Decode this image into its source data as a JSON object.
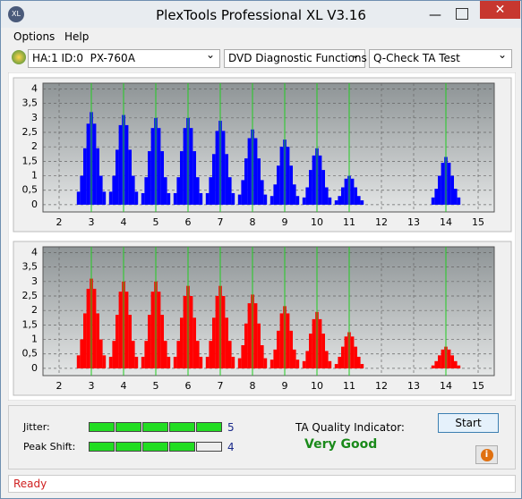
{
  "window": {
    "title": "PlexTools Professional XL V3.16"
  },
  "menu": [
    "Options",
    "Help"
  ],
  "toolbar": {
    "drive": "HA:1 ID:0  PX-760A",
    "function": "DVD Diagnostic Functions",
    "test": "Q-Check TA Test"
  },
  "chart_data": [
    {
      "type": "bar",
      "color": "#0000ff",
      "xlim": [
        1.5,
        15.5
      ],
      "ylim": [
        -0.25,
        4.2
      ],
      "xticks": [
        2,
        3,
        4,
        5,
        6,
        7,
        8,
        9,
        10,
        11,
        12,
        13,
        14,
        15
      ],
      "yticks": [
        0,
        {
          "value": 0.5,
          "label": "0,5"
        },
        1,
        {
          "value": 1.5,
          "label": "1,5"
        },
        2,
        {
          "value": 2.5,
          "label": "2,5"
        },
        3,
        {
          "value": 3.5,
          "label": "3,5"
        },
        4
      ],
      "grid": true,
      "markers": [
        3,
        4,
        5,
        6,
        7,
        8,
        9,
        10,
        11,
        14
      ],
      "marker_color": "#22cc22",
      "x": [
        2.6,
        2.7,
        2.8,
        2.9,
        3,
        3.1,
        3.2,
        3.3,
        3.4,
        3.6,
        3.7,
        3.8,
        3.9,
        4,
        4.1,
        4.2,
        4.3,
        4.4,
        4.6,
        4.7,
        4.8,
        4.9,
        5,
        5.1,
        5.2,
        5.3,
        5.4,
        5.6,
        5.7,
        5.8,
        5.9,
        6,
        6.1,
        6.2,
        6.3,
        6.4,
        6.6,
        6.7,
        6.8,
        6.9,
        7,
        7.1,
        7.2,
        7.3,
        7.4,
        7.6,
        7.7,
        7.8,
        7.9,
        8,
        8.1,
        8.2,
        8.3,
        8.4,
        8.6,
        8.7,
        8.8,
        8.9,
        9,
        9.1,
        9.2,
        9.3,
        9.4,
        9.6,
        9.7,
        9.8,
        9.9,
        10,
        10.1,
        10.2,
        10.3,
        10.4,
        10.6,
        10.7,
        10.8,
        10.9,
        11,
        11.1,
        11.2,
        11.3,
        11.4,
        13.6,
        13.7,
        13.8,
        13.9,
        14,
        14.1,
        14.2,
        14.3,
        14.4
      ],
      "values": [
        0.45,
        1.0,
        1.95,
        2.8,
        3.2,
        2.8,
        1.95,
        1.0,
        0.45,
        0.45,
        1.0,
        1.9,
        2.75,
        3.1,
        2.75,
        1.9,
        1.0,
        0.45,
        0.4,
        0.95,
        1.85,
        2.65,
        3.0,
        2.65,
        1.85,
        0.95,
        0.4,
        0.4,
        0.95,
        1.85,
        2.65,
        3.0,
        2.65,
        1.85,
        0.95,
        0.4,
        0.4,
        0.95,
        1.75,
        2.55,
        2.9,
        2.55,
        1.75,
        0.95,
        0.4,
        0.35,
        0.85,
        1.6,
        2.3,
        2.6,
        2.3,
        1.6,
        0.85,
        0.35,
        0.3,
        0.7,
        1.35,
        2.0,
        2.25,
        2.0,
        1.35,
        0.7,
        0.3,
        0.25,
        0.6,
        1.2,
        1.7,
        1.95,
        1.7,
        1.2,
        0.6,
        0.25,
        0.15,
        0.3,
        0.6,
        0.9,
        1.0,
        0.9,
        0.6,
        0.3,
        0.15,
        0.25,
        0.55,
        1.0,
        1.45,
        1.65,
        1.45,
        1.0,
        0.55,
        0.25
      ]
    },
    {
      "type": "bar",
      "color": "#ff0000",
      "xlim": [
        1.5,
        15.5
      ],
      "ylim": [
        -0.25,
        4.2
      ],
      "xticks": [
        2,
        3,
        4,
        5,
        6,
        7,
        8,
        9,
        10,
        11,
        12,
        13,
        14,
        15
      ],
      "yticks": [
        0,
        {
          "value": 0.5,
          "label": "0,5"
        },
        1,
        {
          "value": 1.5,
          "label": "1,5"
        },
        2,
        {
          "value": 2.5,
          "label": "2,5"
        },
        3,
        {
          "value": 3.5,
          "label": "3,5"
        },
        4
      ],
      "grid": true,
      "markers": [
        3,
        4,
        5,
        6,
        7,
        8,
        9,
        10,
        11,
        14
      ],
      "marker_color": "#22cc22",
      "x": [
        2.6,
        2.7,
        2.8,
        2.9,
        3,
        3.1,
        3.2,
        3.3,
        3.4,
        3.6,
        3.7,
        3.8,
        3.9,
        4,
        4.1,
        4.2,
        4.3,
        4.4,
        4.6,
        4.7,
        4.8,
        4.9,
        5,
        5.1,
        5.2,
        5.3,
        5.4,
        5.6,
        5.7,
        5.8,
        5.9,
        6,
        6.1,
        6.2,
        6.3,
        6.4,
        6.6,
        6.7,
        6.8,
        6.9,
        7,
        7.1,
        7.2,
        7.3,
        7.4,
        7.6,
        7.7,
        7.8,
        7.9,
        8,
        8.1,
        8.2,
        8.3,
        8.4,
        8.6,
        8.7,
        8.8,
        8.9,
        9,
        9.1,
        9.2,
        9.3,
        9.4,
        9.6,
        9.7,
        9.8,
        9.9,
        10,
        10.1,
        10.2,
        10.3,
        10.4,
        10.6,
        10.7,
        10.8,
        10.9,
        11,
        11.1,
        11.2,
        11.3,
        11.4,
        13.6,
        13.7,
        13.8,
        13.9,
        14,
        14.1,
        14.2,
        14.3,
        14.4
      ],
      "values": [
        0.45,
        1.0,
        1.9,
        2.75,
        3.1,
        2.75,
        1.9,
        1.0,
        0.45,
        0.4,
        0.95,
        1.85,
        2.65,
        3.0,
        2.65,
        1.85,
        0.95,
        0.4,
        0.4,
        0.95,
        1.85,
        2.65,
        3.0,
        2.65,
        1.85,
        0.95,
        0.4,
        0.4,
        0.95,
        1.75,
        2.5,
        2.85,
        2.5,
        1.75,
        0.95,
        0.4,
        0.4,
        0.95,
        1.75,
        2.5,
        2.85,
        2.5,
        1.75,
        0.95,
        0.4,
        0.35,
        0.8,
        1.55,
        2.25,
        2.55,
        2.25,
        1.55,
        0.8,
        0.35,
        0.3,
        0.65,
        1.3,
        1.9,
        2.15,
        1.9,
        1.3,
        0.65,
        0.3,
        0.25,
        0.6,
        1.2,
        1.7,
        1.95,
        1.7,
        1.2,
        0.6,
        0.25,
        0.15,
        0.4,
        0.75,
        1.1,
        1.25,
        1.1,
        0.75,
        0.4,
        0.15,
        0.1,
        0.25,
        0.45,
        0.65,
        0.75,
        0.65,
        0.45,
        0.25,
        0.1
      ]
    }
  ],
  "results": {
    "jitter": {
      "label": "Jitter:",
      "value": 5
    },
    "peak_shift": {
      "label": "Peak Shift:",
      "value": 4
    },
    "ta_quality": {
      "label": "TA Quality Indicator:",
      "value": "Very Good"
    }
  },
  "buttons": {
    "start": "Start"
  },
  "status": "Ready"
}
